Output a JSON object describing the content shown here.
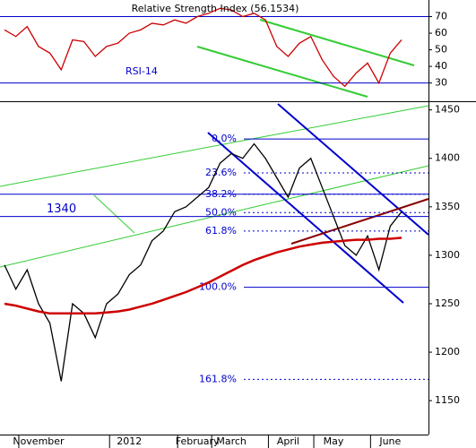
{
  "chart_data": [
    {
      "type": "line",
      "title": "Relative Strength Index (56.1534)",
      "label": "RSI-14",
      "ylim": [
        19,
        80
      ],
      "yticks": [
        30,
        40,
        50,
        60,
        70
      ],
      "levels": [
        30,
        70
      ],
      "level_color": "#0000cc",
      "series": [
        {
          "color": "#cc0000",
          "values": [
            62,
            58,
            64,
            52,
            48,
            38,
            56,
            55,
            46,
            52,
            54,
            60,
            62,
            66,
            65,
            68,
            66,
            70,
            72,
            75,
            74,
            70,
            72,
            68,
            52,
            46,
            54,
            58,
            44,
            34,
            28,
            36,
            42,
            30,
            48,
            56
          ]
        }
      ]
    },
    {
      "type": "line",
      "annotation": "1340",
      "ylim": [
        1115,
        1458
      ],
      "yticks": [
        1150,
        1200,
        1250,
        1300,
        1350,
        1400,
        1450
      ],
      "categories": [
        null,
        null,
        null,
        "November",
        null,
        null,
        null,
        null,
        null,
        null,
        null,
        "2012",
        null,
        null,
        null,
        null,
        null,
        "February",
        null,
        null,
        "March",
        null,
        null,
        null,
        null,
        "April",
        null,
        null,
        null,
        "May",
        null,
        null,
        null,
        null,
        "June",
        null
      ],
      "series": [
        {
          "color": "#000000",
          "values": [
            1290,
            1265,
            1285,
            1250,
            1230,
            1170,
            1250,
            1240,
            1215,
            1250,
            1260,
            1280,
            1290,
            1315,
            1325,
            1345,
            1350,
            1360,
            1370,
            1395,
            1405,
            1400,
            1415,
            1400,
            1380,
            1360,
            1390,
            1400,
            1370,
            1340,
            1310,
            1300,
            1320,
            1285,
            1330,
            1345
          ]
        },
        {
          "color": "#cc0000",
          "values": [
            1250,
            1248,
            1245,
            1242,
            1240,
            1240,
            1240,
            1240,
            1240,
            1241,
            1242,
            1244,
            1247,
            1250,
            1254,
            1258,
            1262,
            1267,
            1272,
            1278,
            1284,
            1290,
            1295,
            1299,
            1303,
            1306,
            1309,
            1311,
            1313,
            1314,
            1315,
            1316,
            1316,
            1317,
            1317,
            1318
          ]
        }
      ],
      "levels": [
        1363,
        1340
      ],
      "level_color": "#0000cc",
      "fib_levels": [
        {
          "label": "0.0%",
          "value": 1420
        },
        {
          "label": "23.6%",
          "value": 1385
        },
        {
          "label": "38.2%",
          "value": 1363
        },
        {
          "label": "50.0%",
          "value": 1344
        },
        {
          "label": "61.8%",
          "value": 1325
        },
        {
          "label": "100.0%",
          "value": 1267
        },
        {
          "label": "161.8%",
          "value": 1172
        }
      ]
    }
  ]
}
